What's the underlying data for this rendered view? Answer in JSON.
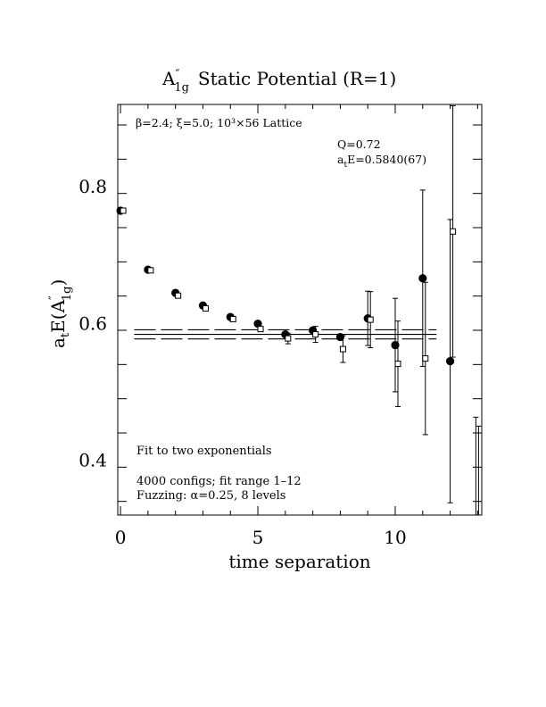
{
  "chart_data": {
    "type": "scatter",
    "title_main": "A",
    "title_sup": "″",
    "title_sub": "1g",
    "title_rest": "Static Potential (R=1)",
    "xlabel": "time separation",
    "ylabel_main": "a",
    "ylabel_sub": "t",
    "ylabel_mid": "E(A",
    "ylabel_sup": "″",
    "ylabel_sub2": "1g",
    "ylabel_end": ")",
    "xlim": [
      -0.1,
      13.15
    ],
    "ylim": [
      0.32,
      0.92
    ],
    "x_ticks": [
      0,
      5,
      10
    ],
    "y_ticks": [
      0.4,
      0.6,
      0.8
    ],
    "x_tick_labels": [
      "0",
      "5",
      "10"
    ],
    "y_tick_labels": [
      "0.4",
      "0.6",
      "0.8"
    ],
    "annotations": {
      "lattice": "β=2.4; ξ=5.0; 10³×56 Lattice",
      "q_value": "Q=0.72",
      "energy_prefix": "a",
      "energy_sub": "t",
      "energy_rest": "E=0.5840(67)",
      "fit_type": "Fit to two exponentials",
      "configs": "4000 configs; fit range 1–12",
      "fuzzing": "Fuzzing: α=0.25, 8 levels"
    },
    "series": [
      {
        "marker": "filled-circle",
        "points": [
          {
            "x": 0,
            "y": 0.7648,
            "err": 0.0
          },
          {
            "x": 1,
            "y": 0.6785,
            "err": 0.0
          },
          {
            "x": 2,
            "y": 0.6447,
            "err": 0.0
          },
          {
            "x": 3,
            "y": 0.6262,
            "err": 0.0
          },
          {
            "x": 4,
            "y": 0.6094,
            "err": 0.0
          },
          {
            "x": 5,
            "y": 0.5996,
            "err": 0.0
          },
          {
            "x": 6,
            "y": 0.584,
            "err": 0.0
          },
          {
            "x": 7,
            "y": 0.5898,
            "err": 0.0
          },
          {
            "x": 8,
            "y": 0.5801,
            "err": 0.0
          },
          {
            "x": 9,
            "y": 0.6074,
            "err": 0.0397
          },
          {
            "x": 10,
            "y": 0.5684,
            "err": 0.0683
          },
          {
            "x": 11,
            "y": 0.666,
            "err": 0.1289
          },
          {
            "x": 12,
            "y": 0.5449,
            "err": 0.207
          }
        ]
      },
      {
        "marker": "open-square",
        "points": [
          {
            "x": 0,
            "y": 0.7648,
            "err": 0.0
          },
          {
            "x": 1,
            "y": 0.6776,
            "err": 0.0
          },
          {
            "x": 2,
            "y": 0.6406,
            "err": 0.0
          },
          {
            "x": 3,
            "y": 0.6219,
            "err": 0.0
          },
          {
            "x": 4,
            "y": 0.6063,
            "err": 0.0
          },
          {
            "x": 5,
            "y": 0.5918,
            "err": 0.0
          },
          {
            "x": 6,
            "y": 0.5781,
            "err": 0.0078
          },
          {
            "x": 7,
            "y": 0.584,
            "err": 0.0117
          },
          {
            "x": 8,
            "y": 0.5625,
            "err": 0.0195
          },
          {
            "x": 9,
            "y": 0.6055,
            "err": 0.041
          },
          {
            "x": 10,
            "y": 0.541,
            "err": 0.0625
          },
          {
            "x": 11,
            "y": 0.5488,
            "err": 0.1113
          },
          {
            "x": 12,
            "y": 0.7344,
            "err": 0.1836
          }
        ]
      }
    ],
    "fit_band": {
      "x_range": [
        0.5,
        11.5
      ],
      "center": 0.584,
      "upper": 0.5907,
      "lower": 0.5773
    }
  }
}
